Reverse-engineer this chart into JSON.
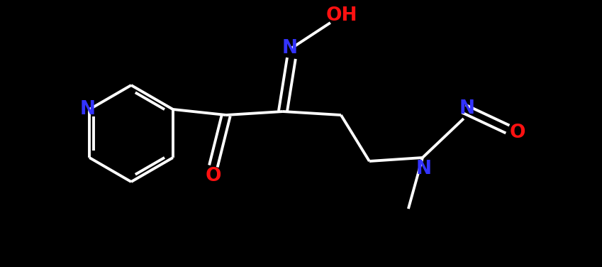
{
  "background_color": "#000000",
  "bond_color": "#ffffff",
  "bond_width": 2.8,
  "atom_colors": {
    "N": "#3333ff",
    "O": "#ff1111",
    "C": "#ffffff"
  },
  "figsize": [
    8.49,
    3.76
  ],
  "dpi": 100,
  "xlim": [
    0,
    849
  ],
  "ylim": [
    0,
    376
  ]
}
